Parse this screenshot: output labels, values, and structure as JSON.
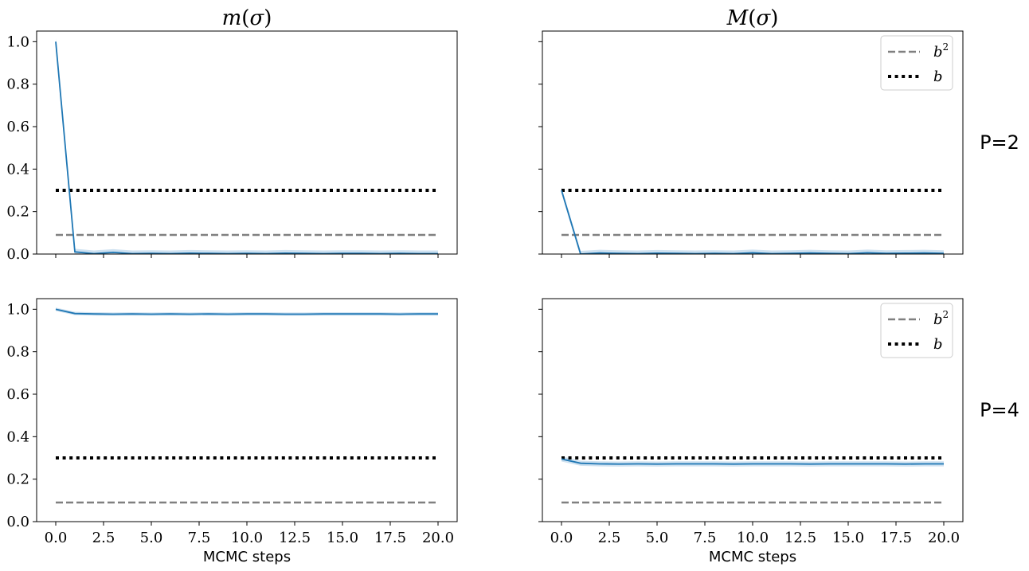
{
  "figure": {
    "row_labels": [
      "P=2",
      "P=4"
    ],
    "xlabel": "MCMC steps"
  },
  "legend": {
    "entries": [
      {
        "label": "b",
        "sup": "2",
        "style": "dashed",
        "color": "#808080"
      },
      {
        "label": "b",
        "sup": "",
        "style": "dotted",
        "color": "#000000"
      }
    ]
  },
  "colors": {
    "series": "#1f77b4",
    "band": "#a6c8e3",
    "b2": "#808080",
    "b": "#000000"
  },
  "chart_data": [
    {
      "type": "line",
      "title": "m(σ)",
      "xlim": [
        -1,
        21
      ],
      "ylim": [
        0,
        1.05
      ],
      "xticks": [
        "0.0",
        "2.5",
        "5.0",
        "7.5",
        "10.0",
        "12.5",
        "15.0",
        "17.5",
        "20.0"
      ],
      "yticks": [
        "0.0",
        "0.2",
        "0.4",
        "0.6",
        "0.8",
        "1.0"
      ],
      "x": [
        0,
        1,
        2,
        3,
        4,
        5,
        6,
        7,
        8,
        9,
        10,
        11,
        12,
        13,
        14,
        15,
        16,
        17,
        18,
        19,
        20
      ],
      "series": [
        {
          "values": [
            1.0,
            0.01,
            0.002,
            0.008,
            0.002,
            0.003,
            0.002,
            0.004,
            0.003,
            0.002,
            0.003,
            0.002,
            0.004,
            0.003,
            0.002,
            0.003,
            0.003,
            0.002,
            0.003,
            0.002,
            0.002
          ],
          "band": 0.015
        }
      ],
      "hlines": [
        {
          "name": "b2",
          "y": 0.09
        },
        {
          "name": "b",
          "y": 0.3
        }
      ],
      "legend": false
    },
    {
      "type": "line",
      "title": "M(σ)",
      "xlim": [
        -1,
        21
      ],
      "ylim": [
        0,
        1.05
      ],
      "xticks": [
        "0.0",
        "2.5",
        "5.0",
        "7.5",
        "10.0",
        "12.5",
        "15.0",
        "17.5",
        "20.0"
      ],
      "yticks": [
        "0.0",
        "0.2",
        "0.4",
        "0.6",
        "0.8",
        "1.0"
      ],
      "x": [
        0,
        1,
        2,
        3,
        4,
        5,
        6,
        7,
        8,
        9,
        10,
        11,
        12,
        13,
        14,
        15,
        16,
        17,
        18,
        19,
        20
      ],
      "series": [
        {
          "values": [
            0.3,
            0.0,
            0.005,
            0.003,
            0.002,
            0.004,
            0.003,
            0.002,
            0.003,
            0.002,
            0.006,
            0.002,
            0.003,
            0.005,
            0.003,
            0.002,
            0.006,
            0.003,
            0.004,
            0.005,
            0.003
          ],
          "band": 0.015
        }
      ],
      "hlines": [
        {
          "name": "b2",
          "y": 0.09
        },
        {
          "name": "b",
          "y": 0.3
        }
      ],
      "legend": true
    },
    {
      "type": "line",
      "title": "",
      "xlim": [
        -1,
        21
      ],
      "ylim": [
        0,
        1.05
      ],
      "xticks": [
        "0.0",
        "2.5",
        "5.0",
        "7.5",
        "10.0",
        "12.5",
        "15.0",
        "17.5",
        "20.0"
      ],
      "yticks": [
        "0.0",
        "0.2",
        "0.4",
        "0.6",
        "0.8",
        "1.0"
      ],
      "x": [
        0,
        1,
        2,
        3,
        4,
        5,
        6,
        7,
        8,
        9,
        10,
        11,
        12,
        13,
        14,
        15,
        16,
        17,
        18,
        19,
        20
      ],
      "series": [
        {
          "values": [
            1.0,
            0.98,
            0.978,
            0.977,
            0.978,
            0.977,
            0.978,
            0.977,
            0.978,
            0.977,
            0.978,
            0.978,
            0.977,
            0.977,
            0.978,
            0.978,
            0.978,
            0.978,
            0.977,
            0.978,
            0.978
          ],
          "band": 0.008
        }
      ],
      "hlines": [
        {
          "name": "b2",
          "y": 0.09
        },
        {
          "name": "b",
          "y": 0.3
        }
      ],
      "legend": false
    },
    {
      "type": "line",
      "title": "",
      "xlim": [
        -1,
        21
      ],
      "ylim": [
        0,
        1.05
      ],
      "xticks": [
        "0.0",
        "2.5",
        "5.0",
        "7.5",
        "10.0",
        "12.5",
        "15.0",
        "17.5",
        "20.0"
      ],
      "yticks": [
        "0.0",
        "0.2",
        "0.4",
        "0.6",
        "0.8",
        "1.0"
      ],
      "x": [
        0,
        1,
        2,
        3,
        4,
        5,
        6,
        7,
        8,
        9,
        10,
        11,
        12,
        13,
        14,
        15,
        16,
        17,
        18,
        19,
        20
      ],
      "series": [
        {
          "values": [
            0.295,
            0.275,
            0.272,
            0.271,
            0.272,
            0.271,
            0.272,
            0.272,
            0.272,
            0.271,
            0.272,
            0.272,
            0.272,
            0.271,
            0.272,
            0.272,
            0.272,
            0.272,
            0.271,
            0.272,
            0.272
          ],
          "band": 0.012
        }
      ],
      "hlines": [
        {
          "name": "b2",
          "y": 0.09
        },
        {
          "name": "b",
          "y": 0.3
        }
      ],
      "legend": true
    }
  ]
}
